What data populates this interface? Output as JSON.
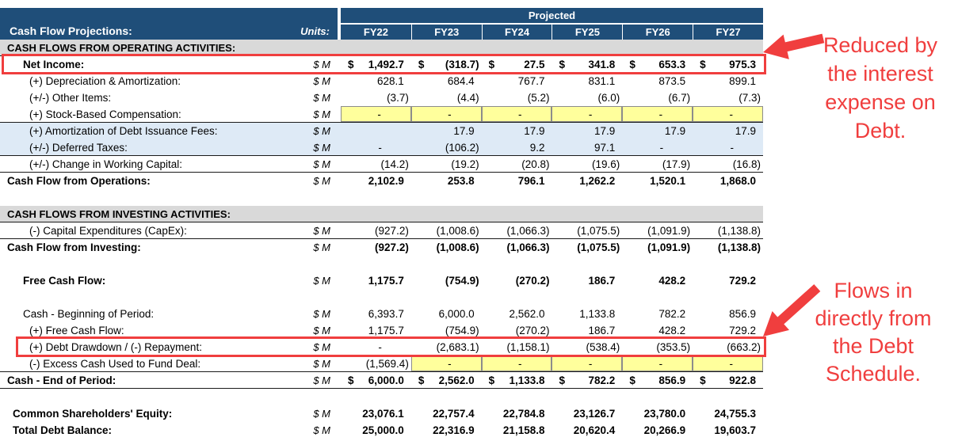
{
  "header": {
    "title": "Cash Flow Projections:",
    "units_label": "Units:",
    "projected_label": "Projected",
    "years": [
      "FY22",
      "FY23",
      "FY24",
      "FY25",
      "FY26",
      "FY27"
    ]
  },
  "colors": {
    "header_blue": "#1F4E79",
    "section_gray": "#D9D9D9",
    "band_blue": "#DEEAF6",
    "cell_yellow": "#FFFF9C",
    "annotation_red": "#F03E3E"
  },
  "rows": [
    {
      "key": "operating-section",
      "type": "section",
      "label": "CASH FLOWS FROM OPERATING ACTIVITIES:"
    },
    {
      "key": "net-income",
      "type": "data",
      "label": "Net Income:",
      "indent": 2,
      "bold": true,
      "units": "$ M",
      "dollar": true,
      "redbox": "full",
      "values": [
        "1,492.7",
        "(318.7)",
        "27.5",
        "341.8",
        "653.3",
        "975.3"
      ]
    },
    {
      "key": "depreciation-amortization",
      "type": "data",
      "label": "(+) Depreciation & Amortization:",
      "indent": 3,
      "units": "$ M",
      "values": [
        "628.1",
        "684.4",
        "767.7",
        "831.1",
        "873.5",
        "899.1"
      ]
    },
    {
      "key": "other-items",
      "type": "data",
      "label": "(+/-) Other Items:",
      "indent": 3,
      "units": "$ M",
      "values": [
        "(3.7)",
        "(4.4)",
        "(5.2)",
        "(6.0)",
        "(6.7)",
        "(7.3)"
      ]
    },
    {
      "key": "stock-based-compensation",
      "type": "data",
      "label": "(+) Stock-Based Compensation:",
      "indent": 3,
      "units": "$ M",
      "bb": true,
      "yellow_from": 0,
      "values": [
        "-",
        "-",
        "-",
        "-",
        "-",
        "-"
      ]
    },
    {
      "key": "amortization-debt-issuance-fees",
      "type": "data",
      "label": "(+) Amortization of Debt Issuance Fees:",
      "indent": 3,
      "units": "$ M",
      "fill": "blue",
      "values": [
        "",
        "17.9",
        "17.9",
        "17.9",
        "17.9",
        "17.9"
      ]
    },
    {
      "key": "deferred-taxes",
      "type": "data",
      "label": "(+/-) Deferred Taxes:",
      "indent": 3,
      "units": "$ M",
      "fill": "blue",
      "bb": true,
      "values": [
        "-",
        "(106.2)",
        "9.2",
        "97.1",
        "-",
        "-"
      ]
    },
    {
      "key": "change-working-capital",
      "type": "data",
      "label": "(+/-) Change in Working Capital:",
      "indent": 3,
      "units": "$ M",
      "bb": true,
      "values": [
        "(14.2)",
        "(19.2)",
        "(20.8)",
        "(19.6)",
        "(17.9)",
        "(16.8)"
      ]
    },
    {
      "key": "cash-flow-operations",
      "type": "data",
      "label": "Cash Flow from Operations:",
      "indent": 0,
      "bold": true,
      "units": "$ M",
      "values": [
        "2,102.9",
        "253.8",
        "796.1",
        "1,262.2",
        "1,520.1",
        "1,868.0"
      ]
    },
    {
      "key": "blank-1",
      "type": "blank"
    },
    {
      "key": "investing-section",
      "type": "section",
      "label": "CASH FLOWS FROM INVESTING ACTIVITIES:"
    },
    {
      "key": "capital-expenditures",
      "type": "data",
      "label": "(-) Capital Expenditures (CapEx):",
      "indent": 3,
      "units": "$ M",
      "bb": true,
      "values": [
        "(927.2)",
        "(1,008.6)",
        "(1,066.3)",
        "(1,075.5)",
        "(1,091.9)",
        "(1,138.8)"
      ]
    },
    {
      "key": "cash-flow-investing",
      "type": "data",
      "label": "Cash Flow from Investing:",
      "indent": 0,
      "bold": true,
      "units": "$ M",
      "values": [
        "(927.2)",
        "(1,008.6)",
        "(1,066.3)",
        "(1,075.5)",
        "(1,091.9)",
        "(1,138.8)"
      ]
    },
    {
      "key": "blank-2",
      "type": "blank"
    },
    {
      "key": "free-cash-flow",
      "type": "data",
      "label": "Free Cash Flow:",
      "indent": 2,
      "bold": true,
      "units": "$ M",
      "values": [
        "1,175.7",
        "(754.9)",
        "(270.2)",
        "186.7",
        "428.2",
        "729.2"
      ]
    },
    {
      "key": "blank-3",
      "type": "blank"
    },
    {
      "key": "cash-beginning",
      "type": "data",
      "label": "Cash - Beginning of Period:",
      "indent": 2,
      "units": "$ M",
      "values": [
        "6,393.7",
        "6,000.0",
        "2,562.0",
        "1,133.8",
        "782.2",
        "856.9"
      ]
    },
    {
      "key": "free-cash-flow-add",
      "type": "data",
      "label": "(+) Free Cash Flow:",
      "indent": 3,
      "units": "$ M",
      "values": [
        "1,175.7",
        "(754.9)",
        "(270.2)",
        "186.7",
        "428.2",
        "729.2"
      ]
    },
    {
      "key": "debt-drawdown-repayment",
      "type": "data",
      "label": "(+) Debt Drawdown / (-) Repayment:",
      "indent": 3,
      "units": "$ M",
      "redbox": "inset",
      "values": [
        "-",
        "(2,683.1)",
        "(1,158.1)",
        "(538.4)",
        "(353.5)",
        "(663.2)"
      ]
    },
    {
      "key": "excess-cash-fund-deal",
      "type": "data",
      "label": "(-) Excess Cash Used to Fund Deal:",
      "indent": 3,
      "units": "$ M",
      "bb": true,
      "yellow_from": 1,
      "values": [
        "(1,569.4)",
        "-",
        "-",
        "-",
        "-",
        "-"
      ]
    },
    {
      "key": "cash-end",
      "type": "data",
      "label": "Cash - End of Period:",
      "indent": 0,
      "bold": true,
      "units": "$ M",
      "dollar": true,
      "bb": true,
      "values": [
        "6,000.0",
        "2,562.0",
        "1,133.8",
        "782.2",
        "856.9",
        "922.8"
      ]
    },
    {
      "key": "blank-4",
      "type": "blank"
    },
    {
      "key": "common-shareholders-equity",
      "type": "data",
      "label": "Common Shareholders' Equity:",
      "indent": 1,
      "bold": true,
      "units": "$ M",
      "values": [
        "23,076.1",
        "22,757.4",
        "22,784.8",
        "23,126.7",
        "23,780.0",
        "24,755.3"
      ]
    },
    {
      "key": "total-debt-balance",
      "type": "data",
      "label": "Total Debt Balance:",
      "indent": 1,
      "bold": true,
      "units": "$ M",
      "values": [
        "25,000.0",
        "22,316.9",
        "21,158.8",
        "20,620.4",
        "20,266.9",
        "19,603.7"
      ]
    }
  ],
  "annotations": [
    {
      "key": "net-income-note",
      "lines": [
        "Reduced by",
        "the interest",
        "expense on",
        "Debt."
      ]
    },
    {
      "key": "debt-schedule-note",
      "lines": [
        "Flows in",
        "directly from",
        "the Debt",
        "Schedule."
      ]
    }
  ]
}
